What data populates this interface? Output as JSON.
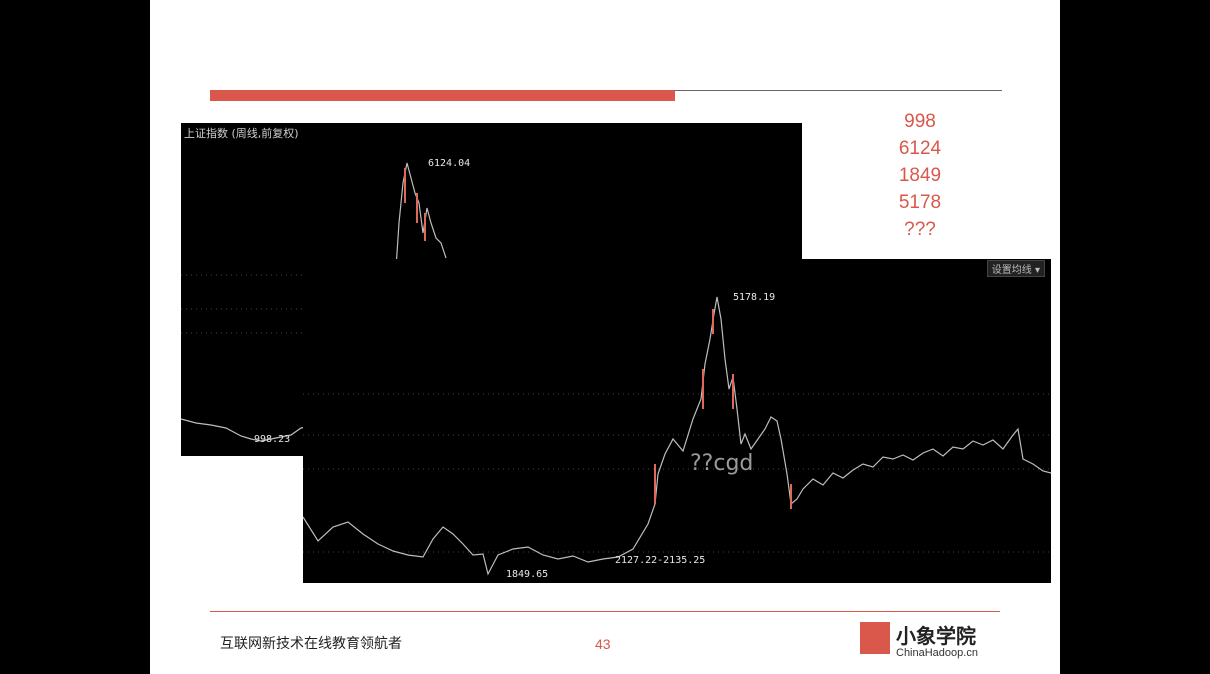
{
  "chart1": {
    "title": "上证指数 (周线,前复权)",
    "peak_label": "6124.04",
    "low_label": "998.23"
  },
  "chart2": {
    "setting_label": "设置均线 ▾",
    "peak_label": "5178.19",
    "low_label": "1849.65",
    "range_label": "2127.22-2135.25",
    "overlay_text": "??cgd"
  },
  "side_numbers": [
    "998",
    "6124",
    "1849",
    "5178",
    "???"
  ],
  "footer": {
    "tagline": "互联网新技术在线教育领航者",
    "page_number": "43",
    "logo_cn": "小象学院",
    "logo_en": "ChinaHadoop.cn"
  },
  "colors": {
    "accent": "#d9574b",
    "up_candle": "#e06a5a",
    "down_candle": "#dcdcdc"
  }
}
